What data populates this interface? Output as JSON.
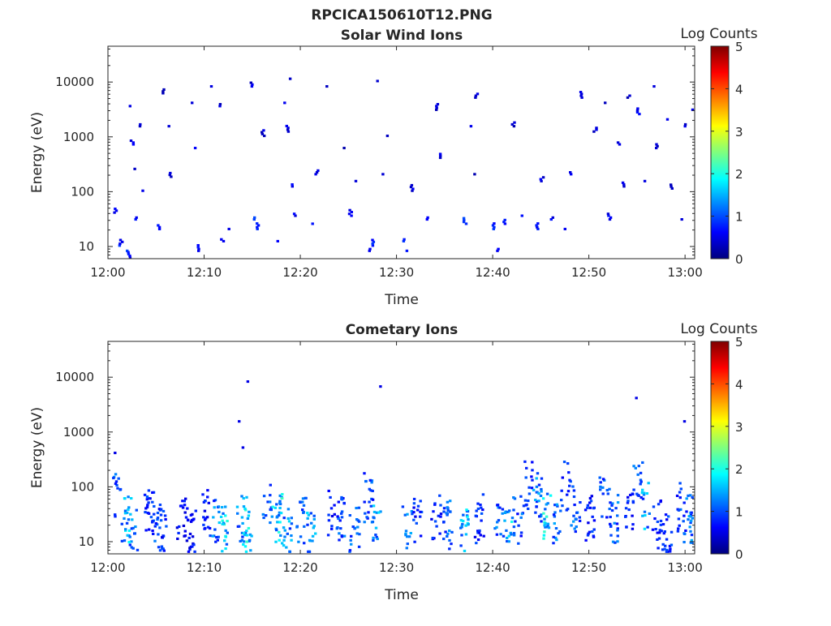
{
  "figure": {
    "title": "RPCICA150610T12.PNG"
  },
  "colors": {
    "axis": "#262626",
    "background": "#ffffff",
    "colormap": [
      "#00007f",
      "#0000ff",
      "#007fff",
      "#00ffff",
      "#7fff7f",
      "#ffff00",
      "#ff7f00",
      "#ff0000",
      "#7f0000"
    ]
  },
  "chart_data": [
    {
      "type": "heatmap",
      "title": "Solar Wind Ions",
      "xlabel": "Time",
      "ylabel": "Energy (eV)",
      "y_scale": "log",
      "xlim": [
        "12:00",
        "13:01"
      ],
      "ylim": [
        6,
        45000
      ],
      "x_ticks": [
        "12:00",
        "12:10",
        "12:20",
        "12:30",
        "12:40",
        "12:50",
        "13:00"
      ],
      "y_ticks": [
        "10",
        "100",
        "1000",
        "10000"
      ],
      "colorbar": {
        "label": "Log Counts",
        "range": [
          0,
          5
        ],
        "ticks": [
          "0",
          "1",
          "2",
          "3",
          "4",
          "5"
        ]
      },
      "cells": [
        [
          0.6,
          40,
          0.3
        ],
        [
          1.2,
          10,
          0.5
        ],
        [
          1.8,
          8,
          0.6
        ],
        [
          2.1,
          6,
          0.4
        ],
        [
          2.3,
          3500,
          0.2
        ],
        [
          2.4,
          700,
          0.3
        ],
        [
          2.6,
          250,
          0.2
        ],
        [
          3.1,
          1500,
          0.2
        ],
        [
          3.5,
          100,
          0.3
        ],
        [
          2.8,
          30,
          0.4
        ],
        [
          5.2,
          20,
          0.5
        ],
        [
          5.6,
          6000,
          0.2
        ],
        [
          6.1,
          1500,
          0.2
        ],
        [
          6.3,
          180,
          0.2
        ],
        [
          8.7,
          4000,
          0.2
        ],
        [
          9.0,
          600,
          0.3
        ],
        [
          9.3,
          8,
          0.4
        ],
        [
          10.5,
          8000,
          0.2
        ],
        [
          11.6,
          3500,
          0.2
        ],
        [
          11.8,
          12,
          0.4
        ],
        [
          12.3,
          20,
          0.4
        ],
        [
          14.8,
          8000,
          0.2
        ],
        [
          15.1,
          30,
          0.6
        ],
        [
          15.4,
          20,
          0.5
        ],
        [
          16.0,
          1000,
          0.2
        ],
        [
          17.5,
          12,
          0.5
        ],
        [
          18.2,
          4000,
          0.3
        ],
        [
          18.5,
          1200,
          0.3
        ],
        [
          18.7,
          11000,
          0.2
        ],
        [
          19.0,
          120,
          0.3
        ],
        [
          19.2,
          35,
          0.4
        ],
        [
          21.1,
          25,
          0.4
        ],
        [
          21.6,
          200,
          0.2
        ],
        [
          22.5,
          8000,
          0.2
        ],
        [
          24.5,
          600,
          0.2
        ],
        [
          25.1,
          35,
          0.4
        ],
        [
          25.6,
          150,
          0.2
        ],
        [
          27.0,
          8,
          0.5
        ],
        [
          27.5,
          10,
          0.6
        ],
        [
          28.0,
          10000,
          0.2
        ],
        [
          28.3,
          200,
          0.3
        ],
        [
          29.0,
          1000,
          0.2
        ],
        [
          30.6,
          12,
          0.5
        ],
        [
          31.0,
          8,
          0.4
        ],
        [
          31.5,
          100,
          0.3
        ],
        [
          33.0,
          30,
          0.4
        ],
        [
          34.0,
          3000,
          0.2
        ],
        [
          34.3,
          400,
          0.2
        ],
        [
          37.0,
          25,
          0.6
        ],
        [
          37.5,
          1500,
          0.2
        ],
        [
          38.0,
          200,
          0.2
        ],
        [
          38.2,
          5000,
          0.2
        ],
        [
          40.0,
          20,
          0.6
        ],
        [
          40.5,
          8,
          0.5
        ],
        [
          41.0,
          25,
          0.4
        ],
        [
          42.0,
          1500,
          0.2
        ],
        [
          43.0,
          35,
          0.4
        ],
        [
          44.5,
          20,
          0.5
        ],
        [
          45.0,
          150,
          0.3
        ],
        [
          46.0,
          30,
          0.4
        ],
        [
          47.5,
          20,
          0.3
        ],
        [
          48.0,
          200,
          0.2
        ],
        [
          49.0,
          5000,
          0.2
        ],
        [
          50.5,
          1200,
          0.2
        ],
        [
          51.5,
          4000,
          0.2
        ],
        [
          52.0,
          30,
          0.4
        ],
        [
          53.0,
          700,
          0.2
        ],
        [
          53.5,
          120,
          0.3
        ],
        [
          54.0,
          5000,
          0.2
        ],
        [
          55.0,
          2500,
          0.3
        ],
        [
          55.8,
          150,
          0.3
        ],
        [
          56.5,
          8000,
          0.2
        ],
        [
          57.0,
          600,
          0.2
        ],
        [
          58.0,
          2000,
          0.2
        ],
        [
          58.5,
          110,
          0.3
        ],
        [
          59.5,
          30,
          0.4
        ],
        [
          60.0,
          1500,
          0.2
        ],
        [
          60.5,
          3000,
          0.2
        ]
      ]
    },
    {
      "type": "heatmap",
      "title": "Cometary Ions",
      "xlabel": "Time",
      "ylabel": "Energy (eV)",
      "y_scale": "log",
      "xlim": [
        "12:00",
        "13:01"
      ],
      "ylim": [
        6,
        45000
      ],
      "x_ticks": [
        "12:00",
        "12:10",
        "12:20",
        "12:30",
        "12:40",
        "12:50",
        "13:00"
      ],
      "y_ticks": [
        "10",
        "100",
        "1000",
        "10000"
      ],
      "colorbar": {
        "label": "Log Counts",
        "range": [
          0,
          5
        ],
        "ticks": [
          "0",
          "1",
          "2",
          "3",
          "4",
          "5"
        ]
      },
      "bursts": [
        [
          0.8,
          60,
          1.2
        ],
        [
          1.8,
          25,
          1.8
        ],
        [
          2.5,
          15,
          1.5
        ],
        [
          4.2,
          40,
          1.0
        ],
        [
          5.0,
          25,
          1.3
        ],
        [
          5.5,
          15,
          1.0
        ],
        [
          7.5,
          25,
          0.8
        ],
        [
          8.5,
          15,
          0.8
        ],
        [
          10.0,
          30,
          0.9
        ],
        [
          11.2,
          25,
          1.4
        ],
        [
          11.8,
          15,
          2.0
        ],
        [
          13.8,
          25,
          1.5
        ],
        [
          14.3,
          15,
          2.2
        ],
        [
          16.5,
          60,
          1.3
        ],
        [
          17.5,
          25,
          2.0
        ],
        [
          18.5,
          15,
          1.6
        ],
        [
          20.0,
          25,
          1.2
        ],
        [
          21.0,
          15,
          1.6
        ],
        [
          23.2,
          30,
          1.0
        ],
        [
          24.0,
          25,
          1.2
        ],
        [
          25.5,
          15,
          1.3
        ],
        [
          27.0,
          60,
          1.2
        ],
        [
          27.8,
          20,
          1.7
        ],
        [
          31.0,
          15,
          1.5
        ],
        [
          32.0,
          25,
          1.0
        ],
        [
          34.0,
          30,
          1.0
        ],
        [
          35.2,
          20,
          1.3
        ],
        [
          37.0,
          15,
          1.8
        ],
        [
          38.5,
          25,
          1.0
        ],
        [
          40.5,
          30,
          1.3
        ],
        [
          41.5,
          20,
          1.8
        ],
        [
          42.5,
          25,
          1.2
        ],
        [
          43.5,
          100,
          1.0
        ],
        [
          44.5,
          60,
          1.4
        ],
        [
          45.5,
          30,
          2.0
        ],
        [
          46.5,
          20,
          1.5
        ],
        [
          47.5,
          100,
          1.0
        ],
        [
          48.5,
          35,
          1.3
        ],
        [
          50.0,
          25,
          1.0
        ],
        [
          51.5,
          60,
          1.2
        ],
        [
          52.5,
          25,
          1.3
        ],
        [
          54.0,
          35,
          1.0
        ],
        [
          55.0,
          100,
          1.2
        ],
        [
          55.8,
          40,
          1.6
        ],
        [
          57.0,
          20,
          1.0
        ],
        [
          58.0,
          15,
          1.0
        ],
        [
          59.5,
          40,
          1.1
        ],
        [
          60.2,
          25,
          1.4
        ]
      ],
      "points": [
        [
          0.6,
          400
        ],
        [
          13.5,
          1500
        ],
        [
          13.9,
          500
        ],
        [
          14.4,
          8000
        ],
        [
          28.2,
          6500
        ],
        [
          54.8,
          4000
        ],
        [
          59.8,
          1500
        ]
      ]
    }
  ]
}
